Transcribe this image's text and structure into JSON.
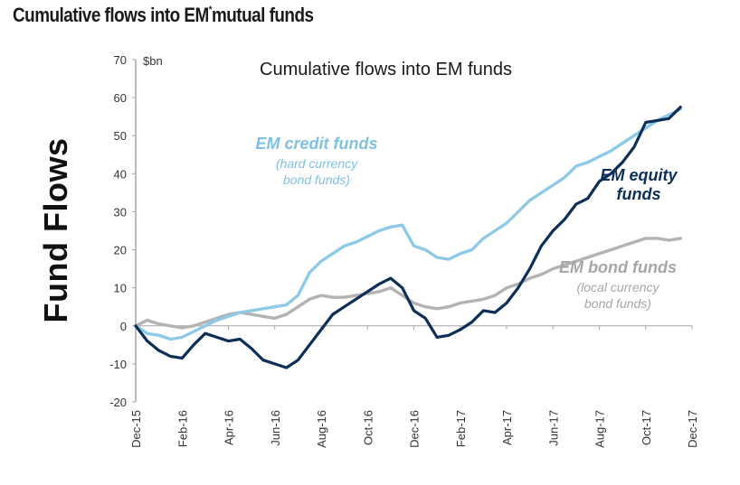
{
  "page": {
    "title": "Cumulative flows into EM",
    "title_sup": "*",
    "title_suffix": "mutual funds",
    "side_label": "Fund Flows"
  },
  "chart_data": {
    "type": "line",
    "title": "Cumulative flows into EM funds",
    "ylabel": "$bn",
    "xlabel": "",
    "ylim": [
      -20,
      70
    ],
    "yticks": [
      -20,
      -10,
      0,
      10,
      20,
      30,
      40,
      50,
      60,
      70
    ],
    "xtick_labels": [
      "Dec-15",
      "Feb-16",
      "Apr-16",
      "Jun-16",
      "Aug-16",
      "Oct-16",
      "Dec-16",
      "Feb-17",
      "Apr-17",
      "Jun-17",
      "Aug-17",
      "Oct-17",
      "Dec-17"
    ],
    "xlim_months": [
      0,
      24
    ],
    "x_unit": "months since Dec-15",
    "grid": false,
    "legend": "inline annotations",
    "series": [
      {
        "name": "EM credit funds",
        "annotation": [
          "EM credit funds",
          "(hard currency",
          "bond funds)"
        ],
        "color": "#8ec9e6",
        "x": [
          0,
          0.5,
          1,
          1.5,
          2,
          2.5,
          3,
          3.5,
          4,
          4.5,
          5,
          5.5,
          6,
          6.5,
          7,
          7.5,
          8,
          8.5,
          9,
          9.5,
          10,
          10.5,
          11,
          11.5,
          12,
          12.5,
          13,
          13.5,
          14,
          14.5,
          15,
          15.5,
          16,
          16.5,
          17,
          17.5,
          18,
          18.5,
          19,
          19.5,
          20,
          20.5,
          21,
          21.5,
          22,
          22.5,
          23,
          23.5
        ],
        "values": [
          0,
          -2,
          -2.5,
          -3.5,
          -3,
          -1.5,
          0,
          1.5,
          2.5,
          3.5,
          4,
          4.5,
          5,
          5.5,
          8,
          14,
          17,
          19,
          21,
          22,
          23.5,
          25,
          26,
          26.5,
          21,
          20,
          18,
          17.5,
          19,
          20,
          23,
          25,
          27,
          30,
          33,
          35,
          37,
          39,
          42,
          43,
          44.5,
          46,
          48,
          50,
          52,
          54,
          55.5,
          57
        ]
      },
      {
        "name": "EM equity funds",
        "annotation": [
          "EM equity",
          "funds"
        ],
        "color": "#0d2f57",
        "x": [
          0,
          0.5,
          1,
          1.5,
          2,
          2.5,
          3,
          3.5,
          4,
          4.5,
          5,
          5.5,
          6,
          6.5,
          7,
          7.5,
          8,
          8.5,
          9,
          9.5,
          10,
          10.5,
          11,
          11.5,
          12,
          12.5,
          13,
          13.5,
          14,
          14.5,
          15,
          15.5,
          16,
          16.5,
          17,
          17.5,
          18,
          18.5,
          19,
          19.5,
          20,
          20.5,
          21,
          21.5,
          22,
          22.5,
          23,
          23.5
        ],
        "values": [
          0,
          -4,
          -6.5,
          -8,
          -8.5,
          -5,
          -2,
          -3,
          -4,
          -3.5,
          -6,
          -9,
          -10,
          -11,
          -9,
          -5,
          -1,
          3,
          5,
          7,
          9,
          11,
          12.5,
          10,
          4,
          2,
          -3,
          -2.5,
          -1,
          1,
          4,
          3.5,
          6,
          10,
          15,
          21,
          25,
          28,
          32,
          33.5,
          38,
          40,
          43,
          47,
          53.5,
          54,
          54.5,
          57.5
        ]
      },
      {
        "name": "EM bond funds",
        "annotation": [
          "EM bond funds",
          "(local currency",
          "bond funds)"
        ],
        "color": "#b3b3b3",
        "x": [
          0,
          0.5,
          1,
          1.5,
          2,
          2.5,
          3,
          3.5,
          4,
          4.5,
          5,
          5.5,
          6,
          6.5,
          7,
          7.5,
          8,
          8.5,
          9,
          9.5,
          10,
          10.5,
          11,
          11.5,
          12,
          12.5,
          13,
          13.5,
          14,
          14.5,
          15,
          15.5,
          16,
          16.5,
          17,
          17.5,
          18,
          18.5,
          19,
          19.5,
          20,
          20.5,
          21,
          21.5,
          22,
          22.5,
          23,
          23.5
        ],
        "values": [
          0,
          1.5,
          0.5,
          0,
          -0.5,
          0,
          1,
          2,
          3,
          3.5,
          3,
          2.5,
          2,
          3,
          5,
          7,
          8,
          7.5,
          7.5,
          8,
          8.5,
          9,
          10,
          8,
          6,
          5,
          4.5,
          5,
          6,
          6.5,
          7,
          8,
          10,
          11,
          12.5,
          13.5,
          15,
          16,
          17,
          18,
          19,
          20,
          21,
          22,
          23,
          23,
          22.5,
          23
        ]
      }
    ]
  }
}
